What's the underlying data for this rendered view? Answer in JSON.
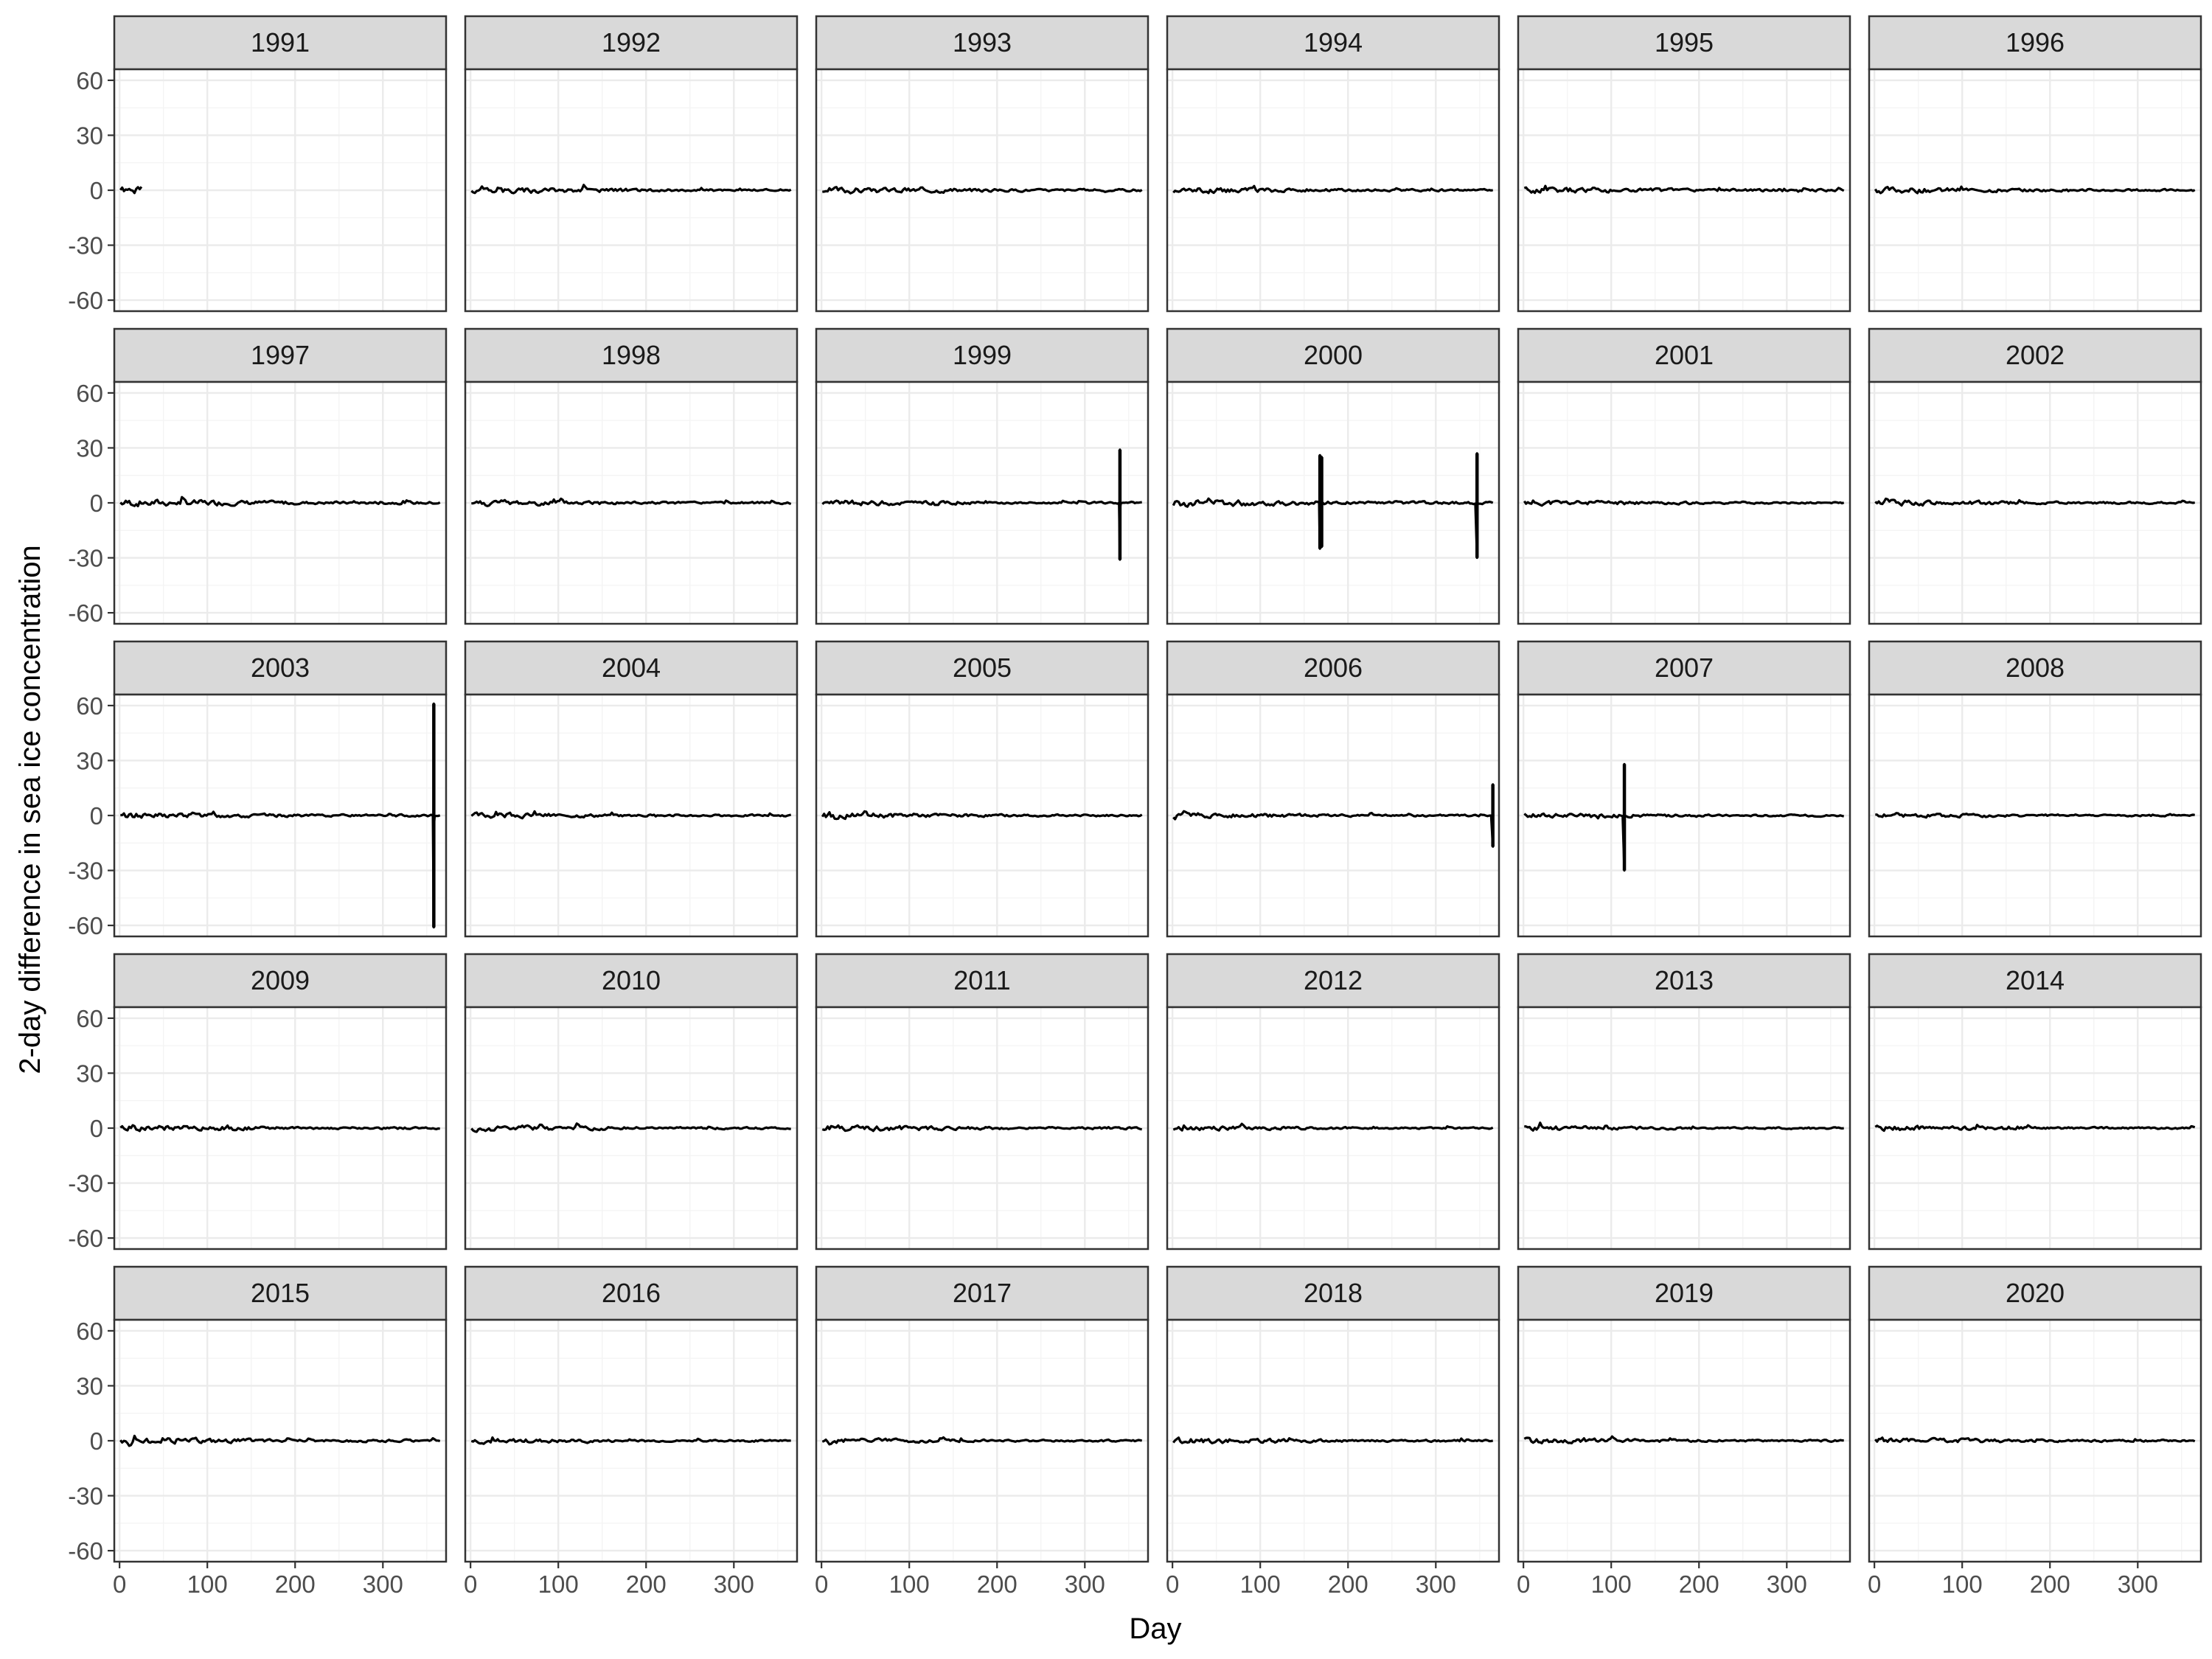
{
  "chart_data": {
    "type": "line",
    "title": "",
    "xlabel": "Day",
    "ylabel": "2-day difference in sea ice concentration",
    "xlim": [
      -6,
      372
    ],
    "ylim": [
      -66,
      66
    ],
    "x_ticks": [
      0,
      100,
      200,
      300
    ],
    "x_tick_labels": [
      "0",
      "100",
      "200",
      "300"
    ],
    "y_ticks": [
      60,
      30,
      0,
      -30,
      -60
    ],
    "y_tick_labels": [
      "60",
      "30",
      "0",
      "-30",
      "-60"
    ],
    "grid": true,
    "facet_columns": 6,
    "facets": [
      {
        "label": "1991",
        "x_range": [
          1,
          25
        ],
        "amp": 2,
        "seed": 1,
        "spikes": []
      },
      {
        "label": "1992",
        "x_range": [
          1,
          365
        ],
        "amp": 2,
        "seed": 2,
        "spikes": []
      },
      {
        "label": "1993",
        "x_range": [
          1,
          365
        ],
        "amp": 2,
        "seed": 3,
        "spikes": []
      },
      {
        "label": "1994",
        "x_range": [
          1,
          365
        ],
        "amp": 1.8,
        "seed": 4,
        "spikes": []
      },
      {
        "label": "1995",
        "x_range": [
          1,
          365
        ],
        "amp": 2,
        "seed": 5,
        "spikes": []
      },
      {
        "label": "1996",
        "x_range": [
          1,
          365
        ],
        "amp": 1.8,
        "seed": 6,
        "spikes": []
      },
      {
        "label": "1997",
        "x_range": [
          1,
          365
        ],
        "amp": 2.2,
        "seed": 7,
        "spikes": []
      },
      {
        "label": "1998",
        "x_range": [
          1,
          365
        ],
        "amp": 1.8,
        "seed": 8,
        "spikes": []
      },
      {
        "label": "1999",
        "x_range": [
          1,
          365
        ],
        "amp": 1.6,
        "seed": 9,
        "spikes": [
          {
            "x": 340,
            "y": [
              -31,
              29
            ]
          }
        ]
      },
      {
        "label": "2000",
        "x_range": [
          1,
          365
        ],
        "amp": 2.2,
        "seed": 10,
        "spikes": [
          {
            "x": 168,
            "y": [
              -25,
              26
            ]
          },
          {
            "x": 170,
            "y": [
              -24,
              25
            ]
          },
          {
            "x": 347,
            "y": [
              -30,
              27
            ]
          }
        ]
      },
      {
        "label": "2001",
        "x_range": [
          1,
          365
        ],
        "amp": 1.5,
        "seed": 11,
        "spikes": []
      },
      {
        "label": "2002",
        "x_range": [
          1,
          365
        ],
        "amp": 1.7,
        "seed": 12,
        "spikes": []
      },
      {
        "label": "2003",
        "x_range": [
          1,
          365
        ],
        "amp": 1.8,
        "seed": 13,
        "spikes": [
          {
            "x": 358,
            "y": [
              -61,
              61
            ]
          }
        ]
      },
      {
        "label": "2004",
        "x_range": [
          1,
          365
        ],
        "amp": 1.6,
        "seed": 14,
        "spikes": []
      },
      {
        "label": "2005",
        "x_range": [
          1,
          365
        ],
        "amp": 1.7,
        "seed": 15,
        "spikes": []
      },
      {
        "label": "2006",
        "x_range": [
          1,
          365
        ],
        "amp": 1.6,
        "seed": 16,
        "spikes": [
          {
            "x": 365,
            "y": [
              -17,
              17
            ]
          }
        ]
      },
      {
        "label": "2007",
        "x_range": [
          1,
          365
        ],
        "amp": 1.5,
        "seed": 17,
        "spikes": [
          {
            "x": 115,
            "y": [
              -30,
              28
            ]
          }
        ]
      },
      {
        "label": "2008",
        "x_range": [
          1,
          365
        ],
        "amp": 1.3,
        "seed": 18,
        "spikes": []
      },
      {
        "label": "2009",
        "x_range": [
          1,
          365
        ],
        "amp": 1.8,
        "seed": 19,
        "spikes": []
      },
      {
        "label": "2010",
        "x_range": [
          1,
          365
        ],
        "amp": 1.7,
        "seed": 20,
        "spikes": []
      },
      {
        "label": "2011",
        "x_range": [
          1,
          365
        ],
        "amp": 1.8,
        "seed": 21,
        "spikes": []
      },
      {
        "label": "2012",
        "x_range": [
          1,
          365
        ],
        "amp": 1.4,
        "seed": 22,
        "spikes": []
      },
      {
        "label": "2013",
        "x_range": [
          1,
          365
        ],
        "amp": 1.5,
        "seed": 23,
        "spikes": []
      },
      {
        "label": "2014",
        "x_range": [
          1,
          365
        ],
        "amp": 1.6,
        "seed": 24,
        "spikes": []
      },
      {
        "label": "2015",
        "x_range": [
          1,
          365
        ],
        "amp": 1.9,
        "seed": 25,
        "spikes": []
      },
      {
        "label": "2016",
        "x_range": [
          1,
          365
        ],
        "amp": 1.5,
        "seed": 26,
        "spikes": []
      },
      {
        "label": "2017",
        "x_range": [
          1,
          365
        ],
        "amp": 1.5,
        "seed": 27,
        "spikes": []
      },
      {
        "label": "2018",
        "x_range": [
          1,
          365
        ],
        "amp": 1.7,
        "seed": 28,
        "spikes": []
      },
      {
        "label": "2019",
        "x_range": [
          1,
          365
        ],
        "amp": 1.5,
        "seed": 29,
        "spikes": []
      },
      {
        "label": "2020",
        "x_range": [
          1,
          365
        ],
        "amp": 1.7,
        "seed": 30,
        "spikes": []
      }
    ]
  }
}
